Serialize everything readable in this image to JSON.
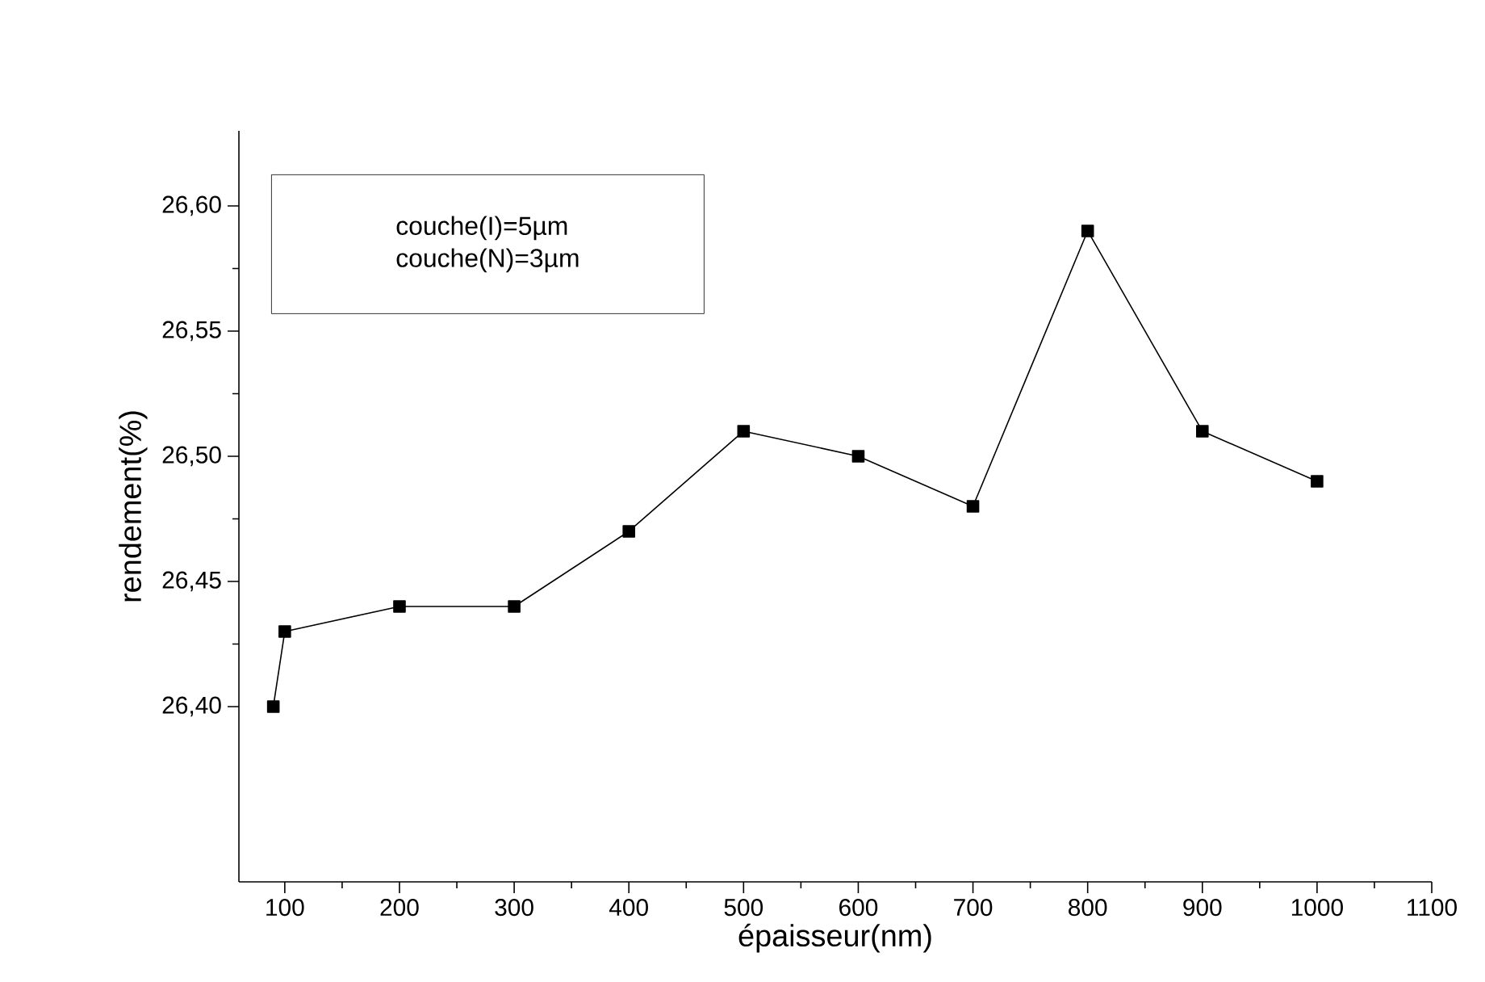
{
  "chart_data": {
    "type": "line",
    "xlabel": "épaisseur(nm)",
    "ylabel": "rendement(%)",
    "annotations": [
      "couche(I)=5µm",
      "couche(N)=3µm"
    ],
    "x": [
      90,
      100,
      200,
      300,
      400,
      500,
      600,
      700,
      800,
      900,
      1000
    ],
    "series": [
      {
        "color": "#000000",
        "values": [
          26.4,
          26.43,
          26.44,
          26.44,
          26.47,
          26.51,
          26.5,
          26.48,
          26.59,
          26.51,
          26.49
        ]
      }
    ],
    "xlim": [
      60,
      1100
    ],
    "ylim": [
      26.33,
      26.63
    ],
    "xticks": [
      100,
      200,
      300,
      400,
      500,
      600,
      700,
      800,
      900,
      1000,
      1100
    ],
    "yticks": [
      {
        "value": 26.4,
        "label": "26,40"
      },
      {
        "value": 26.45,
        "label": "26,45"
      },
      {
        "value": 26.5,
        "label": "26,50"
      },
      {
        "value": 26.55,
        "label": "26,55"
      },
      {
        "value": 26.6,
        "label": "26,60"
      }
    ],
    "grid": false,
    "marker": "square",
    "line_style": "solid"
  }
}
